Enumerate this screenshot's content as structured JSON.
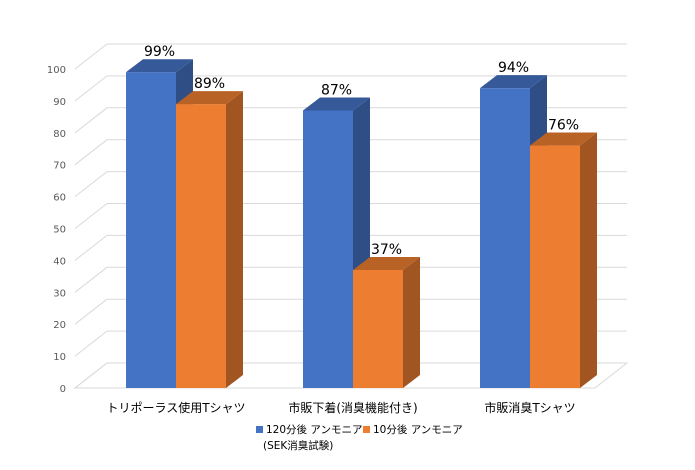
{
  "chart_data": {
    "type": "bar",
    "style": "3d-clustered-column",
    "categories": [
      "トリポーラス使用Tシャツ",
      "市販下着(消臭機能付き)",
      "市販消臭Tシャツ"
    ],
    "series": [
      {
        "name": "120分後 アンモニア",
        "name_line2": "(SEK消臭試験)",
        "values": [
          99,
          87,
          94
        ],
        "labels": [
          "99%",
          "87%",
          "94%"
        ],
        "color": "#4472C4"
      },
      {
        "name": "10分後 アンモニア",
        "values": [
          89,
          37,
          76
        ],
        "labels": [
          "89%",
          "37%",
          "76%"
        ],
        "color": "#ED7D31"
      }
    ],
    "yticks": [
      "0",
      "10",
      "20",
      "30",
      "40",
      "50",
      "60",
      "70",
      "80",
      "90",
      "100"
    ],
    "ylim": [
      0,
      100
    ],
    "grid": true,
    "legend_position": "bottom"
  }
}
